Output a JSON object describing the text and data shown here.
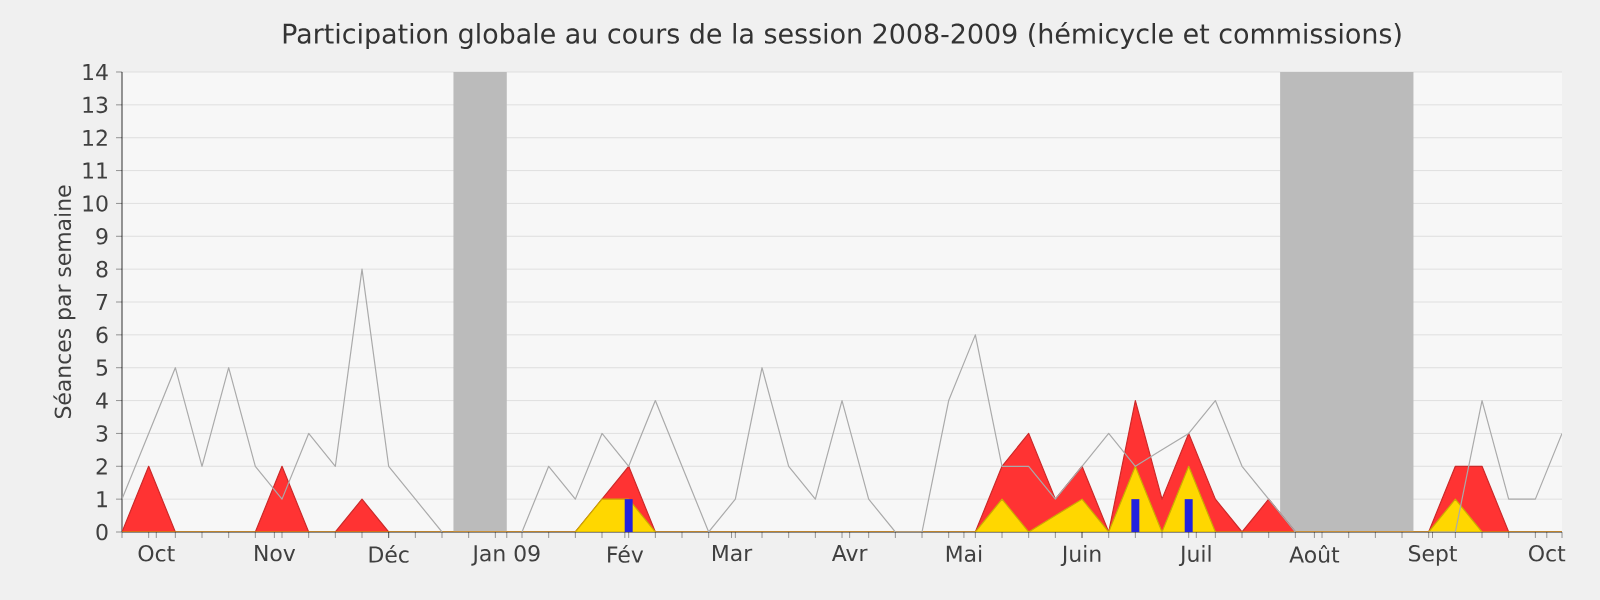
{
  "chart_data": {
    "type": "area",
    "title": "Participation globale au cours de la session 2008-2009 (hémicycle et commissions)",
    "ylabel": "Séances par semaine",
    "x": [
      "2008-09-22",
      "2008-09-29",
      "2008-10-06",
      "2008-10-13",
      "2008-10-20",
      "2008-10-27",
      "2008-11-03",
      "2008-11-10",
      "2008-11-17",
      "2008-11-24",
      "2008-12-01",
      "2008-12-08",
      "2008-12-15",
      "2008-12-22",
      "2008-12-29",
      "2009-01-05",
      "2009-01-12",
      "2009-01-19",
      "2009-01-26",
      "2009-02-02",
      "2009-02-09",
      "2009-02-16",
      "2009-02-23",
      "2009-03-02",
      "2009-03-09",
      "2009-03-16",
      "2009-03-23",
      "2009-03-30",
      "2009-04-06",
      "2009-04-13",
      "2009-04-20",
      "2009-04-27",
      "2009-05-04",
      "2009-05-11",
      "2009-05-18",
      "2009-05-25",
      "2009-06-01",
      "2009-06-08",
      "2009-06-15",
      "2009-06-22",
      "2009-06-29",
      "2009-07-06",
      "2009-07-13",
      "2009-07-20",
      "2009-07-27",
      "2009-08-03",
      "2009-08-10",
      "2009-08-17",
      "2009-08-24",
      "2009-08-31",
      "2009-09-07",
      "2009-09-14",
      "2009-09-21",
      "2009-09-28",
      "2009-10-05"
    ],
    "xlim": [
      "2008-09-22",
      "2009-10-05"
    ],
    "xticks": [
      {
        "value": "2008-10-01",
        "label": "Oct"
      },
      {
        "value": "2008-11-01",
        "label": "Nov"
      },
      {
        "value": "2008-12-01",
        "label": "Déc"
      },
      {
        "value": "2009-01-01",
        "label": "Jan 09"
      },
      {
        "value": "2009-02-01",
        "label": "Fév"
      },
      {
        "value": "2009-03-01",
        "label": "Mar"
      },
      {
        "value": "2009-04-01",
        "label": "Avr"
      },
      {
        "value": "2009-05-01",
        "label": "Mai"
      },
      {
        "value": "2009-06-01",
        "label": "Juin"
      },
      {
        "value": "2009-07-01",
        "label": "Juil"
      },
      {
        "value": "2009-08-01",
        "label": "Août"
      },
      {
        "value": "2009-09-01",
        "label": "Sept"
      },
      {
        "value": "2009-10-01",
        "label": "Oct"
      }
    ],
    "ylim": [
      0,
      14
    ],
    "yticks": [
      0,
      1,
      2,
      3,
      4,
      5,
      6,
      7,
      8,
      9,
      10,
      11,
      12,
      13,
      14
    ],
    "grid": "y",
    "bands": [
      {
        "axis": "x",
        "from": "2008-12-18",
        "to": "2009-01-01",
        "color": "#bbbbbb"
      },
      {
        "axis": "x",
        "from": "2009-07-23",
        "to": "2009-08-27",
        "color": "#bbbbbb"
      }
    ],
    "series": [
      {
        "color": "#ff3333",
        "values": [
          0,
          2,
          0,
          0,
          0,
          0,
          2,
          0,
          0,
          1,
          0,
          0,
          0,
          0,
          0,
          0,
          0,
          0,
          1,
          2,
          0,
          0,
          0,
          0,
          0,
          0,
          0,
          0,
          0,
          0,
          0,
          0,
          0,
          2,
          3,
          1,
          2,
          0,
          4,
          1,
          3,
          1,
          0,
          1,
          0,
          0,
          0,
          0,
          0,
          0,
          2,
          2,
          0,
          0,
          0
        ]
      },
      {
        "color": "#ffd700",
        "values": [
          0,
          0,
          0,
          0,
          0,
          0,
          0,
          0,
          0,
          0,
          0,
          0,
          0,
          0,
          0,
          0,
          0,
          0,
          1,
          1,
          0,
          0,
          0,
          0,
          0,
          0,
          0,
          0,
          0,
          0,
          0,
          0,
          0,
          1,
          0,
          0.5,
          1,
          0,
          2,
          0,
          2,
          0,
          0,
          0,
          0,
          0,
          0,
          0,
          0,
          0,
          1,
          0,
          0,
          0,
          0
        ]
      },
      {
        "type": "bar",
        "color": "#2222dd",
        "values": [
          null,
          null,
          null,
          null,
          null,
          null,
          null,
          null,
          null,
          null,
          null,
          null,
          null,
          null,
          null,
          null,
          null,
          null,
          null,
          1,
          null,
          null,
          null,
          null,
          null,
          null,
          null,
          null,
          null,
          null,
          null,
          null,
          null,
          null,
          null,
          null,
          null,
          null,
          1,
          null,
          1,
          null,
          null,
          null,
          null,
          null,
          null,
          null,
          null,
          null,
          null,
          null,
          null,
          null,
          null
        ]
      },
      {
        "type": "line",
        "color": "#aaaaaa",
        "values": [
          1,
          3,
          5,
          2,
          5,
          2,
          1,
          3,
          2,
          8,
          2,
          1,
          0,
          null,
          null,
          0,
          2,
          1,
          3,
          2,
          4,
          2,
          0,
          1,
          5,
          2,
          1,
          4,
          1,
          0,
          0,
          4,
          6,
          2,
          2,
          1,
          2,
          3,
          2,
          2.5,
          3,
          4,
          2,
          1,
          0,
          null,
          null,
          null,
          null,
          0,
          0,
          4,
          1,
          1,
          3
        ]
      }
    ]
  }
}
